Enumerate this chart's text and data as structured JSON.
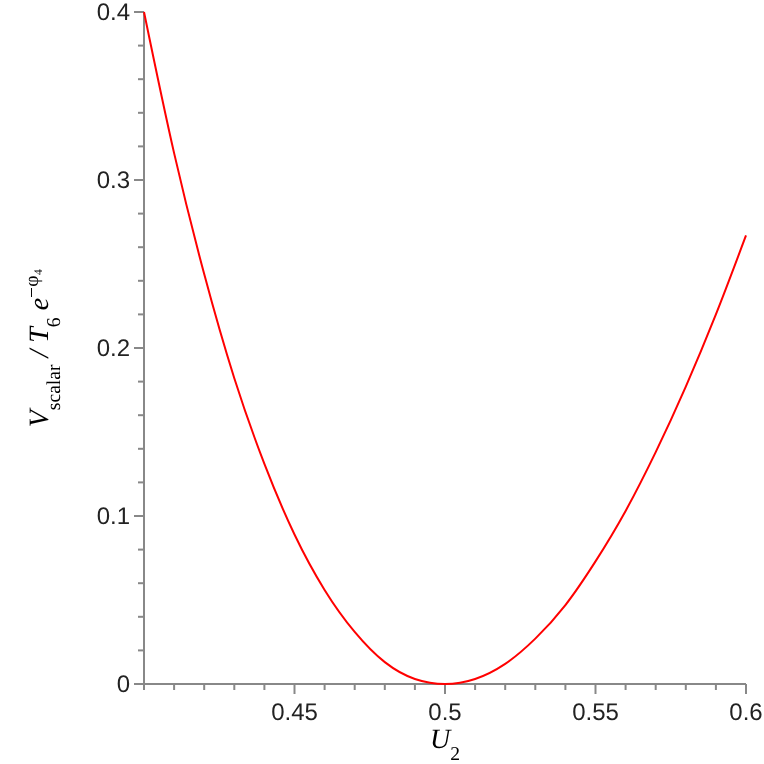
{
  "chart_data": {
    "type": "line",
    "xlabel": "U$_{2}$",
    "ylabel": "V$_{scalar}$ / T$_{6}$ e$^{−φ₄}$",
    "x": [
      0.4,
      0.41,
      0.42,
      0.43,
      0.44,
      0.45,
      0.46,
      0.47,
      0.48,
      0.49,
      0.5,
      0.51,
      0.52,
      0.53,
      0.54,
      0.55,
      0.56,
      0.57,
      0.58,
      0.59,
      0.6
    ],
    "series": [
      {
        "color": "#ff0000",
        "values": [
          0.4,
          0.316,
          0.244,
          0.182,
          0.131,
          0.089,
          0.056,
          0.031,
          0.013,
          0.003,
          0,
          0.003,
          0.012,
          0.027,
          0.047,
          0.073,
          0.103,
          0.138,
          0.177,
          0.22,
          0.267
        ]
      }
    ],
    "xlim": [
      0.4,
      0.6
    ],
    "ylim": [
      0,
      0.4
    ],
    "xticks": [
      {
        "value": 0.4,
        "label": null
      },
      {
        "value": 0.41,
        "label": null
      },
      {
        "value": 0.42,
        "label": null
      },
      {
        "value": 0.43,
        "label": null
      },
      {
        "value": 0.44,
        "label": null
      },
      0.45,
      {
        "value": 0.46,
        "label": null
      },
      {
        "value": 0.47,
        "label": null
      },
      {
        "value": 0.48,
        "label": null
      },
      {
        "value": 0.49,
        "label": null
      },
      0.5,
      {
        "value": 0.51,
        "label": null
      },
      {
        "value": 0.52,
        "label": null
      },
      {
        "value": 0.53,
        "label": null
      },
      {
        "value": 0.54,
        "label": null
      },
      0.55,
      {
        "value": 0.56,
        "label": null
      },
      {
        "value": 0.57,
        "label": null
      },
      {
        "value": 0.58,
        "label": null
      },
      {
        "value": 0.59,
        "label": null
      },
      0.6
    ],
    "yticks": [
      0,
      {
        "value": 0.02,
        "label": null
      },
      {
        "value": 0.04,
        "label": null
      },
      {
        "value": 0.06,
        "label": null
      },
      {
        "value": 0.08,
        "label": null
      },
      0.1,
      {
        "value": 0.12,
        "label": null
      },
      {
        "value": 0.14,
        "label": null
      },
      {
        "value": 0.16,
        "label": null
      },
      {
        "value": 0.18,
        "label": null
      },
      0.2,
      {
        "value": 0.22,
        "label": null
      },
      {
        "value": 0.24,
        "label": null
      },
      {
        "value": 0.26,
        "label": null
      },
      {
        "value": 0.28,
        "label": null
      },
      0.3,
      {
        "value": 0.32,
        "label": null
      },
      {
        "value": 0.34,
        "label": null
      },
      {
        "value": 0.36,
        "label": null
      },
      {
        "value": 0.38,
        "label": null
      },
      0.4
    ],
    "grid": false,
    "line_style": "solid"
  }
}
